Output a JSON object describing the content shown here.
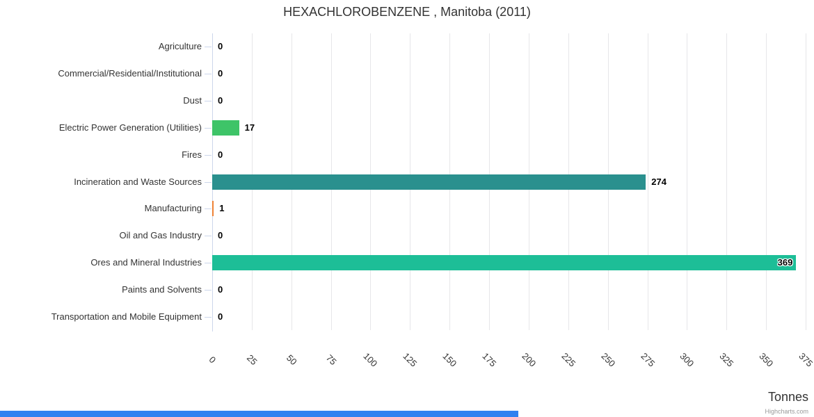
{
  "chart_data": {
    "type": "bar",
    "orientation": "horizontal",
    "title": "HEXACHLOROBENZENE , Manitoba (2011)",
    "xlabel": "Tonnes",
    "xlim": [
      0,
      375
    ],
    "ticks": [
      0,
      25,
      50,
      75,
      100,
      125,
      150,
      175,
      200,
      225,
      250,
      275,
      300,
      325,
      350,
      375
    ],
    "grid": true,
    "legend": false,
    "categories": [
      "Agriculture",
      "Commercial/Residential/Institutional",
      "Dust",
      "Electric Power Generation (Utilities)",
      "Fires",
      "Incineration and Waste Sources",
      "Manufacturing",
      "Oil and Gas Industry",
      "Ores and Mineral Industries",
      "Paints and Solvents",
      "Transportation and Mobile Equipment"
    ],
    "values": [
      0,
      0,
      0,
      17,
      0,
      274,
      1,
      0,
      369,
      0,
      0
    ],
    "value_labels": [
      "0",
      "0",
      "0",
      "17",
      "0",
      "274",
      "1",
      "0",
      "369",
      "0",
      "0"
    ],
    "bar_colors": [
      null,
      null,
      null,
      "#3ec468",
      null,
      "#2a908e",
      "#ee8236",
      null,
      "#1dbe97",
      null,
      null
    ]
  },
  "credits": {
    "label": "Highcharts.com"
  },
  "ui": {
    "grid_color": "#e6e6e9",
    "axis_color": "#ccd6eb",
    "text_color": "#333333",
    "value_label_color": "#000000",
    "scrollbar_color": "#2f81f0"
  }
}
